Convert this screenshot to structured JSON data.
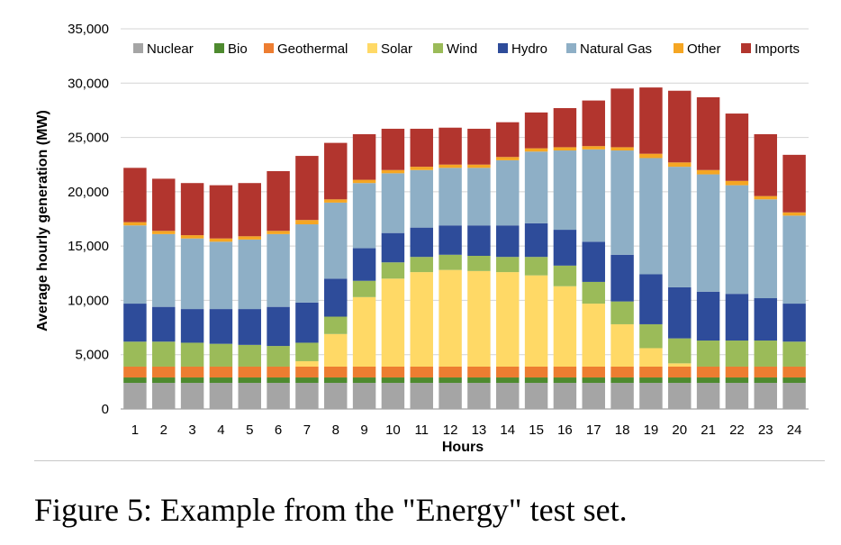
{
  "caption": "Figure 5: Example from the \"Energy\" test set.",
  "chart_data": {
    "type": "bar",
    "stacked": true,
    "xlabel": "Hours",
    "ylabel": "Average hourly generation (MW)",
    "ylim": [
      0,
      35000
    ],
    "yticks": [
      0,
      5000,
      10000,
      15000,
      20000,
      25000,
      30000,
      35000
    ],
    "ytick_labels": [
      "0",
      "5,000",
      "10,000",
      "15,000",
      "20,000",
      "25,000",
      "30,000",
      "35,000"
    ],
    "grid": "horizontal",
    "legend_placement": "top",
    "categories": [
      "1",
      "2",
      "3",
      "4",
      "5",
      "6",
      "7",
      "8",
      "9",
      "10",
      "11",
      "12",
      "13",
      "14",
      "15",
      "16",
      "17",
      "18",
      "19",
      "20",
      "21",
      "22",
      "23",
      "24"
    ],
    "series": [
      {
        "name": "Nuclear",
        "color": "#a5a5a5",
        "values": [
          2400,
          2400,
          2400,
          2400,
          2400,
          2400,
          2400,
          2400,
          2400,
          2400,
          2400,
          2400,
          2400,
          2400,
          2400,
          2400,
          2400,
          2400,
          2400,
          2400,
          2400,
          2400,
          2400,
          2400
        ]
      },
      {
        "name": "Bio",
        "color": "#4e8a2f",
        "values": [
          500,
          500,
          500,
          500,
          500,
          500,
          500,
          500,
          500,
          500,
          500,
          500,
          500,
          500,
          500,
          500,
          500,
          500,
          500,
          500,
          500,
          500,
          500,
          500
        ]
      },
      {
        "name": "Geothermal",
        "color": "#ed7d31",
        "values": [
          1000,
          1000,
          1000,
          1000,
          1000,
          1000,
          1000,
          1000,
          1000,
          1000,
          1000,
          1000,
          1000,
          1000,
          1000,
          1000,
          1000,
          1000,
          1000,
          1000,
          1000,
          1000,
          1000,
          1000
        ]
      },
      {
        "name": "Solar",
        "color": "#ffd966",
        "values": [
          0,
          0,
          0,
          0,
          0,
          0,
          500,
          3000,
          6400,
          8100,
          8700,
          8900,
          8800,
          8700,
          8400,
          7400,
          5800,
          3900,
          1700,
          300,
          0,
          0,
          0,
          0
        ]
      },
      {
        "name": "Wind",
        "color": "#9bbb59",
        "values": [
          2300,
          2300,
          2200,
          2100,
          2000,
          1900,
          1700,
          1600,
          1500,
          1500,
          1400,
          1400,
          1400,
          1400,
          1700,
          1900,
          2000,
          2100,
          2200,
          2300,
          2400,
          2400,
          2400,
          2300
        ]
      },
      {
        "name": "Hydro",
        "color": "#2e4c9a",
        "values": [
          3500,
          3200,
          3100,
          3200,
          3300,
          3600,
          3700,
          3500,
          3000,
          2700,
          2700,
          2700,
          2800,
          2900,
          3100,
          3300,
          3700,
          4300,
          4600,
          4700,
          4500,
          4300,
          3900,
          3500
        ]
      },
      {
        "name": "Natural Gas",
        "color": "#8eafc6",
        "values": [
          7200,
          6700,
          6500,
          6200,
          6400,
          6700,
          7200,
          7000,
          6000,
          5500,
          5300,
          5300,
          5300,
          6000,
          6600,
          7300,
          8500,
          9600,
          10700,
          11100,
          10800,
          10000,
          9100,
          8100
        ]
      },
      {
        "name": "Other",
        "color": "#f5a623",
        "values": [
          300,
          300,
          300,
          300,
          300,
          300,
          400,
          300,
          300,
          300,
          300,
          300,
          300,
          300,
          300,
          300,
          300,
          300,
          400,
          400,
          400,
          400,
          300,
          300
        ]
      },
      {
        "name": "Imports",
        "color": "#b2352e",
        "values": [
          5000,
          4800,
          4800,
          4900,
          4900,
          5500,
          5900,
          5200,
          4200,
          3800,
          3500,
          3400,
          3300,
          3200,
          3300,
          3600,
          4200,
          5400,
          6100,
          6600,
          6700,
          6200,
          5700,
          5300
        ]
      }
    ]
  }
}
